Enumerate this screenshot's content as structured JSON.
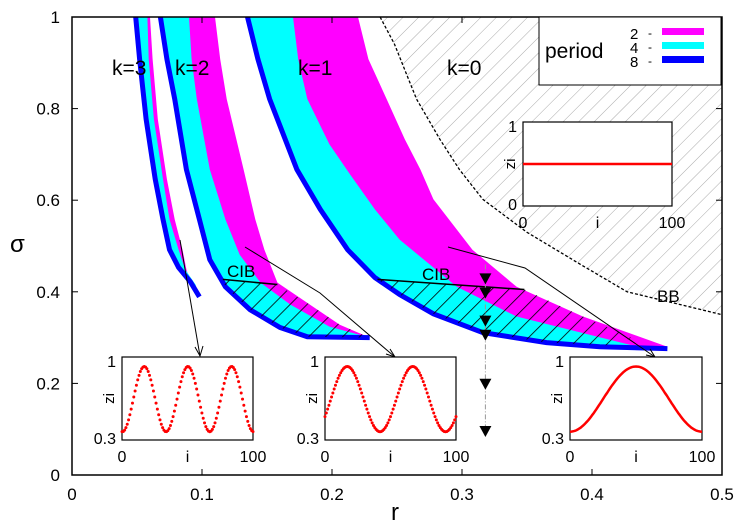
{
  "chart_data": {
    "type": "area",
    "xlabel": "r",
    "ylabel": "σ",
    "xlim": [
      0,
      0.5
    ],
    "ylim": [
      0,
      1
    ],
    "xticks": [
      "0",
      "0.1",
      "0.2",
      "0.3",
      "0.4",
      "0.5"
    ],
    "yticks": [
      "0",
      "0.2",
      "0.4",
      "0.6",
      "0.8",
      "1"
    ],
    "grid": false,
    "legend": {
      "title": "period",
      "placement": "top-right",
      "entries": [
        {
          "label": "2",
          "color": "#ff00ff"
        },
        {
          "label": "4",
          "color": "#00ffff"
        },
        {
          "label": "8",
          "color": "#0000ff"
        }
      ]
    },
    "colors": {
      "period2": "#ff00ff",
      "period4": "#00ffff",
      "period8": "#0000ff",
      "profile": "#ff0000"
    },
    "bands": [
      {
        "label": "k=3",
        "left": [
          [
            0.049,
            1.0
          ],
          [
            0.052,
            0.908
          ],
          [
            0.057,
            0.777
          ],
          [
            0.064,
            0.646
          ],
          [
            0.07,
            0.558
          ],
          [
            0.075,
            0.492
          ],
          [
            0.082,
            0.453
          ],
          [
            0.091,
            0.422
          ],
          [
            0.098,
            0.389
          ]
        ],
        "period4_right": [
          [
            0.058,
            1.0
          ],
          [
            0.059,
            0.908
          ],
          [
            0.063,
            0.777
          ],
          [
            0.07,
            0.646
          ],
          [
            0.075,
            0.558
          ],
          [
            0.082,
            0.492
          ],
          [
            0.087,
            0.449
          ],
          [
            0.095,
            0.416
          ],
          [
            0.098,
            0.389
          ]
        ],
        "period2_right": [
          [
            0.06,
            1.0
          ],
          [
            0.062,
            0.908
          ],
          [
            0.066,
            0.777
          ],
          [
            0.073,
            0.646
          ],
          [
            0.079,
            0.558
          ],
          [
            0.085,
            0.492
          ],
          [
            0.088,
            0.449
          ],
          [
            0.091,
            0.422
          ],
          [
            0.098,
            0.389
          ]
        ]
      },
      {
        "label": "k=2",
        "left": [
          [
            0.068,
            1.0
          ],
          [
            0.073,
            0.908
          ],
          [
            0.079,
            0.821
          ],
          [
            0.088,
            0.667
          ],
          [
            0.098,
            0.558
          ],
          [
            0.106,
            0.47
          ],
          [
            0.118,
            0.411
          ],
          [
            0.137,
            0.361
          ],
          [
            0.16,
            0.322
          ],
          [
            0.181,
            0.302
          ],
          [
            0.229,
            0.3
          ]
        ],
        "period4_right": [
          [
            0.09,
            1.0
          ],
          [
            0.092,
            0.908
          ],
          [
            0.096,
            0.821
          ],
          [
            0.106,
            0.667
          ],
          [
            0.118,
            0.558
          ],
          [
            0.129,
            0.481
          ],
          [
            0.145,
            0.42
          ],
          [
            0.168,
            0.372
          ],
          [
            0.198,
            0.324
          ],
          [
            0.229,
            0.3
          ]
        ],
        "period2_right": [
          [
            0.11,
            1.0
          ],
          [
            0.114,
            0.908
          ],
          [
            0.119,
            0.821
          ],
          [
            0.132,
            0.667
          ],
          [
            0.141,
            0.558
          ],
          [
            0.148,
            0.492
          ],
          [
            0.158,
            0.42
          ],
          [
            0.183,
            0.372
          ],
          [
            0.206,
            0.328
          ],
          [
            0.229,
            0.3
          ]
        ]
      },
      {
        "label": "k=1",
        "left": [
          [
            0.135,
            1.0
          ],
          [
            0.143,
            0.908
          ],
          [
            0.152,
            0.821
          ],
          [
            0.173,
            0.667
          ],
          [
            0.191,
            0.58
          ],
          [
            0.212,
            0.492
          ],
          [
            0.233,
            0.431
          ],
          [
            0.252,
            0.394
          ],
          [
            0.278,
            0.352
          ],
          [
            0.316,
            0.311
          ],
          [
            0.365,
            0.289
          ],
          [
            0.406,
            0.28
          ],
          [
            0.458,
            0.276
          ]
        ],
        "period4_right": [
          [
            0.17,
            1.0
          ],
          [
            0.174,
            0.908
          ],
          [
            0.181,
            0.821
          ],
          [
            0.198,
            0.722
          ],
          [
            0.214,
            0.656
          ],
          [
            0.233,
            0.58
          ],
          [
            0.252,
            0.514
          ],
          [
            0.296,
            0.411
          ],
          [
            0.342,
            0.346
          ],
          [
            0.432,
            0.282
          ],
          [
            0.458,
            0.276
          ]
        ],
        "period2_right": [
          [
            0.22,
            1.0
          ],
          [
            0.228,
            0.908
          ],
          [
            0.242,
            0.821
          ],
          [
            0.256,
            0.733
          ],
          [
            0.268,
            0.667
          ],
          [
            0.278,
            0.602
          ],
          [
            0.308,
            0.492
          ],
          [
            0.342,
            0.411
          ],
          [
            0.393,
            0.346
          ],
          [
            0.458,
            0.28
          ]
        ]
      }
    ],
    "region_labels": [
      "k=3",
      "k=2",
      "k=1",
      "k=0",
      "CIB",
      "CIB",
      "BB"
    ],
    "cib_regions": [
      {
        "label": "CIB",
        "line": [
          [
            0.116,
            0.427
          ],
          [
            0.158,
            0.416
          ]
        ],
        "polygon": [
          [
            0.116,
            0.427
          ],
          [
            0.158,
            0.416
          ],
          [
            0.183,
            0.372
          ],
          [
            0.206,
            0.328
          ],
          [
            0.229,
            0.3
          ],
          [
            0.181,
            0.302
          ],
          [
            0.16,
            0.322
          ],
          [
            0.137,
            0.361
          ],
          [
            0.118,
            0.411
          ]
        ]
      },
      {
        "label": "CIB",
        "line": [
          [
            0.235,
            0.427
          ],
          [
            0.348,
            0.405
          ]
        ],
        "polygon": [
          [
            0.235,
            0.427
          ],
          [
            0.348,
            0.405
          ],
          [
            0.393,
            0.346
          ],
          [
            0.43,
            0.3
          ],
          [
            0.42,
            0.282
          ],
          [
            0.365,
            0.289
          ],
          [
            0.316,
            0.311
          ],
          [
            0.278,
            0.352
          ],
          [
            0.252,
            0.394
          ]
        ]
      }
    ],
    "bb_boundary": {
      "label": "BB",
      "curve": [
        [
          0.237,
          1.0
        ],
        [
          0.248,
          0.941
        ],
        [
          0.265,
          0.821
        ],
        [
          0.283,
          0.733
        ],
        [
          0.298,
          0.667
        ],
        [
          0.316,
          0.602
        ],
        [
          0.35,
          0.53
        ],
        [
          0.391,
          0.46
        ],
        [
          0.427,
          0.4
        ],
        [
          0.468,
          0.372
        ],
        [
          0.5,
          0.35
        ]
      ]
    },
    "scan_line": {
      "r": 0.318,
      "sigma_range": [
        0.094,
        0.46
      ],
      "markers": [
        0.427,
        0.396,
        0.335,
        0.304,
        0.197,
        0.094
      ]
    },
    "insets": [
      {
        "ylabel": "z_i",
        "xlabel": "i",
        "xticks": [
          "0",
          "100"
        ],
        "yticks": [
          "0.3",
          "1"
        ],
        "ylim": [
          0.3,
          1
        ],
        "profile": {
          "mean": 0.645,
          "amplitude": 0.275,
          "periods": 3,
          "peak_i": 17
        },
        "style": "dots"
      },
      {
        "ylabel": "z_i",
        "xlabel": "i",
        "xticks": [
          "0",
          "100"
        ],
        "yticks": [
          "0.3",
          "1"
        ],
        "ylim": [
          0.3,
          1
        ],
        "profile": {
          "mean": 0.645,
          "amplitude": 0.275,
          "periods": 2,
          "peak_i": 17
        },
        "style": "dots"
      },
      {
        "ylabel": "z_i",
        "xlabel": "i",
        "xticks": [
          "0",
          "100"
        ],
        "yticks": [
          "0.3",
          "1"
        ],
        "ylim": [
          0.3,
          1
        ],
        "profile": {
          "mean": 0.645,
          "amplitude": 0.275,
          "periods": 1,
          "peak_i": 50
        },
        "style": "line"
      },
      {
        "ylabel": "z_i",
        "xlabel": "i",
        "xticks": [
          "0",
          "100"
        ],
        "yticks": [
          "0",
          "1"
        ],
        "ylim": [
          0,
          1
        ],
        "profile": {
          "mean": 0.5,
          "amplitude": 0,
          "periods": 0,
          "peak_i": 0
        },
        "style": "line"
      }
    ]
  }
}
